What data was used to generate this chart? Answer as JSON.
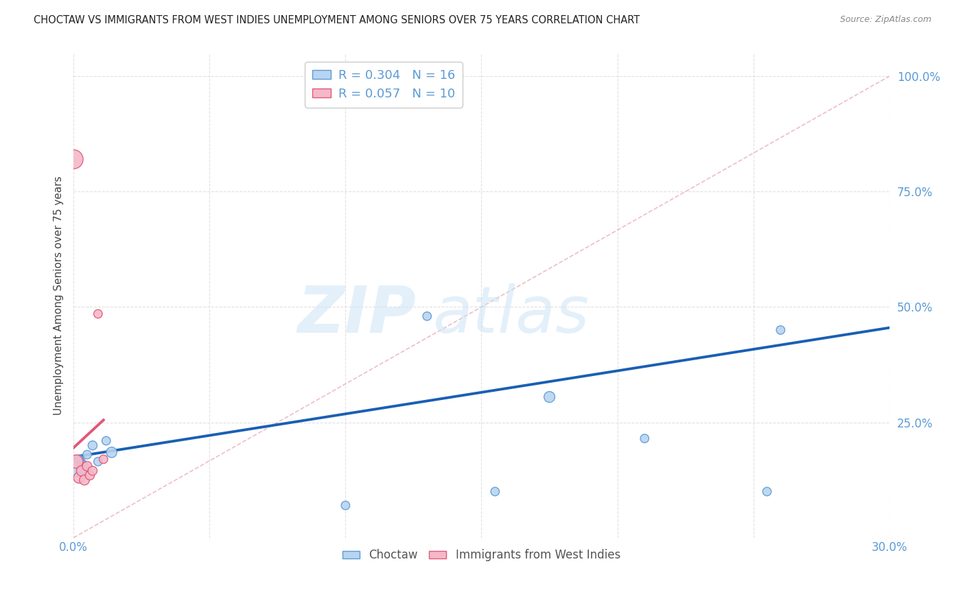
{
  "title": "CHOCTAW VS IMMIGRANTS FROM WEST INDIES UNEMPLOYMENT AMONG SENIORS OVER 75 YEARS CORRELATION CHART",
  "source": "Source: ZipAtlas.com",
  "ylabel": "Unemployment Among Seniors over 75 years",
  "xlim": [
    0.0,
    0.3
  ],
  "ylim": [
    0.0,
    1.05
  ],
  "xticks": [
    0.0,
    0.05,
    0.1,
    0.15,
    0.2,
    0.25,
    0.3
  ],
  "xtick_labels": [
    "0.0%",
    "",
    "",
    "",
    "",
    "",
    "30.0%"
  ],
  "yticks": [
    0.0,
    0.25,
    0.5,
    0.75,
    1.0
  ],
  "ytick_labels": [
    "",
    "25.0%",
    "50.0%",
    "75.0%",
    "100.0%"
  ],
  "choctaw_x": [
    0.001,
    0.002,
    0.003,
    0.004,
    0.005,
    0.007,
    0.009,
    0.012,
    0.014,
    0.1,
    0.13,
    0.155,
    0.175,
    0.21,
    0.255,
    0.26
  ],
  "choctaw_y": [
    0.155,
    0.17,
    0.16,
    0.155,
    0.18,
    0.2,
    0.165,
    0.21,
    0.185,
    0.07,
    0.48,
    0.1,
    0.305,
    0.215,
    0.1,
    0.45
  ],
  "choctaw_sizes": [
    500,
    80,
    70,
    70,
    80,
    90,
    80,
    80,
    120,
    80,
    80,
    80,
    130,
    80,
    80,
    80
  ],
  "choctaw_color": "#b8d4f0",
  "choctaw_edge_color": "#5b9bd5",
  "choctaw_R": 0.304,
  "choctaw_N": 16,
  "choctaw_line_color": "#1a5fb4",
  "choctaw_line_x0": 0.0,
  "choctaw_line_y0": 0.175,
  "choctaw_line_x1": 0.3,
  "choctaw_line_y1": 0.455,
  "immigrants_x": [
    0.0,
    0.001,
    0.002,
    0.003,
    0.004,
    0.005,
    0.006,
    0.007,
    0.009,
    0.011
  ],
  "immigrants_y": [
    0.82,
    0.165,
    0.13,
    0.145,
    0.125,
    0.155,
    0.135,
    0.145,
    0.485,
    0.17
  ],
  "immigrants_sizes": [
    400,
    200,
    130,
    120,
    110,
    100,
    90,
    90,
    80,
    80
  ],
  "immigrants_color": "#f5b8c8",
  "immigrants_edge_color": "#e05878",
  "immigrants_R": 0.057,
  "immigrants_N": 10,
  "immigrants_line_color": "#e05878",
  "immigrants_line_x0": 0.0,
  "immigrants_line_y0": 0.195,
  "immigrants_line_x1": 0.011,
  "immigrants_line_y1": 0.255,
  "diag_color": "#cccccc",
  "watermark_zip_color": "#cce0f5",
  "watermark_atlas_color": "#cce0f5",
  "background_color": "#ffffff",
  "grid_color": "#e0e0e0",
  "axis_color": "#5b9bd5",
  "legend_label_choctaw": "Choctaw",
  "legend_label_immigrants": "Immigrants from West Indies"
}
